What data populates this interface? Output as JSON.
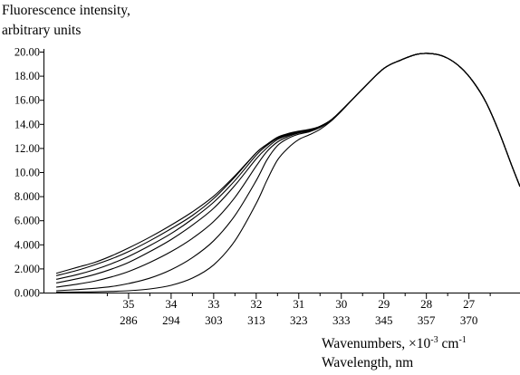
{
  "chart_data": {
    "type": "line",
    "title": "",
    "ylabel_lines": [
      "Fluorescence intensity,",
      "arbitrary units"
    ],
    "xlabel_lines": [
      {
        "text": "Wavenumbers, ×10",
        "sup": "-3",
        "after": " cm",
        "sup2": "-1"
      },
      {
        "text": "Wavelength, nm"
      }
    ],
    "ylim": [
      0,
      20
    ],
    "xlim": [
      37.0,
      25.8
    ],
    "y_ticks": [
      {
        "value": 0,
        "label": "0.000"
      },
      {
        "value": 2,
        "label": "2.000"
      },
      {
        "value": 4,
        "label": "4.000"
      },
      {
        "value": 6,
        "label": "6.000"
      },
      {
        "value": 8,
        "label": "8.000"
      },
      {
        "value": 10,
        "label": "10.00"
      },
      {
        "value": 12,
        "label": "12.00"
      },
      {
        "value": 14,
        "label": "14.00"
      },
      {
        "value": 16,
        "label": "16.00"
      },
      {
        "value": 18,
        "label": "18.00"
      },
      {
        "value": 20,
        "label": "20.00"
      }
    ],
    "x_ticks": [
      {
        "value": 35,
        "wavenumber": "35",
        "wavelength": "286"
      },
      {
        "value": 34,
        "wavenumber": "34",
        "wavelength": "294"
      },
      {
        "value": 33,
        "wavenumber": "33",
        "wavelength": "303"
      },
      {
        "value": 32,
        "wavenumber": "32",
        "wavelength": "313"
      },
      {
        "value": 31,
        "wavenumber": "31",
        "wavelength": "323"
      },
      {
        "value": 30,
        "wavenumber": "30",
        "wavelength": "333"
      },
      {
        "value": 29,
        "wavenumber": "29",
        "wavelength": "345"
      },
      {
        "value": 28,
        "wavenumber": "28",
        "wavelength": "357"
      },
      {
        "value": 27,
        "wavenumber": "27",
        "wavelength": "370"
      }
    ],
    "x_minor_ticks": [
      35.5,
      34.5,
      33.5,
      32.5,
      31.5,
      30.5,
      29.5,
      28.5,
      27.5,
      26.5
    ],
    "line_color": "#000000",
    "series": [
      {
        "x": [
          36.7,
          36.2,
          35.8,
          35.4,
          35.0,
          34.5,
          34.0,
          33.5,
          33.0,
          32.5,
          32.0,
          31.75,
          31.5,
          31.25,
          31.0,
          30.75,
          30.5,
          30.25,
          30.0,
          29.5,
          29.0,
          28.6,
          28.2,
          27.8,
          27.5,
          27.2,
          26.9,
          26.6,
          26.3,
          26.0,
          25.8
        ],
        "values": [
          1.6,
          2.1,
          2.5,
          3.05,
          3.7,
          4.6,
          5.6,
          6.7,
          8.0,
          9.7,
          11.6,
          12.3,
          12.9,
          13.2,
          13.4,
          13.55,
          13.8,
          14.3,
          15.1,
          16.9,
          18.6,
          19.3,
          19.8,
          19.8,
          19.45,
          18.7,
          17.5,
          15.8,
          13.4,
          10.6,
          8.8
        ]
      },
      {
        "x": [
          36.7,
          36.2,
          35.8,
          35.4,
          35.0,
          34.5,
          34.0,
          33.5,
          33.0,
          32.5,
          32.0,
          31.75,
          31.5,
          31.25,
          31.0,
          30.75,
          30.5,
          30.25,
          30.0,
          29.5,
          29.0,
          28.6,
          28.2,
          27.8,
          27.5,
          27.2,
          26.9,
          26.6,
          26.3,
          26.0,
          25.8
        ],
        "values": [
          1.4,
          1.85,
          2.3,
          2.8,
          3.4,
          4.3,
          5.3,
          6.4,
          7.8,
          9.6,
          11.6,
          12.3,
          12.85,
          13.15,
          13.35,
          13.5,
          13.8,
          14.3,
          15.1,
          16.9,
          18.6,
          19.3,
          19.8,
          19.8,
          19.45,
          18.7,
          17.5,
          15.8,
          13.4,
          10.6,
          8.8
        ]
      },
      {
        "x": [
          36.7,
          36.2,
          35.8,
          35.4,
          35.0,
          34.5,
          34.0,
          33.5,
          33.0,
          32.5,
          32.0,
          31.75,
          31.5,
          31.25,
          31.0,
          30.75,
          30.5,
          30.25,
          30.0,
          29.5,
          29.0,
          28.6,
          28.2,
          27.8,
          27.5,
          27.2,
          26.9,
          26.6,
          26.3,
          26.0,
          25.8
        ],
        "values": [
          1.1,
          1.5,
          1.9,
          2.4,
          3.0,
          3.9,
          4.9,
          6.1,
          7.5,
          9.3,
          11.4,
          12.2,
          12.8,
          13.1,
          13.3,
          13.5,
          13.8,
          14.3,
          15.1,
          16.9,
          18.6,
          19.3,
          19.8,
          19.8,
          19.45,
          18.7,
          17.5,
          15.8,
          13.4,
          10.6,
          8.8
        ]
      },
      {
        "x": [
          36.7,
          36.2,
          35.8,
          35.4,
          35.0,
          34.5,
          34.0,
          33.5,
          33.0,
          32.5,
          32.0,
          31.75,
          31.5,
          31.25,
          31.0,
          30.75,
          30.5,
          30.25,
          30.0,
          29.5,
          29.0,
          28.6,
          28.2,
          27.8,
          27.5,
          27.2,
          26.9,
          26.6,
          26.3,
          26.0,
          25.8
        ],
        "values": [
          0.8,
          1.15,
          1.5,
          1.95,
          2.5,
          3.4,
          4.4,
          5.6,
          7.0,
          8.9,
          11.1,
          12.0,
          12.7,
          13.05,
          13.3,
          13.45,
          13.8,
          14.3,
          15.1,
          16.9,
          18.6,
          19.3,
          19.8,
          19.8,
          19.45,
          18.7,
          17.5,
          15.8,
          13.4,
          10.6,
          8.8
        ]
      },
      {
        "x": [
          36.7,
          36.2,
          35.8,
          35.4,
          35.0,
          34.5,
          34.0,
          33.5,
          33.0,
          32.5,
          32.0,
          31.75,
          31.5,
          31.25,
          31.0,
          30.75,
          30.5,
          30.25,
          30.0,
          29.5,
          29.0,
          28.6,
          28.2,
          27.8,
          27.5,
          27.2,
          26.9,
          26.6,
          26.3,
          26.0,
          25.8
        ],
        "values": [
          0.45,
          0.7,
          0.95,
          1.3,
          1.75,
          2.5,
          3.4,
          4.5,
          5.9,
          7.9,
          10.5,
          11.7,
          12.5,
          12.95,
          13.25,
          13.4,
          13.75,
          14.3,
          15.1,
          16.9,
          18.6,
          19.3,
          19.8,
          19.8,
          19.45,
          18.7,
          17.5,
          15.8,
          13.4,
          10.6,
          8.8
        ]
      },
      {
        "x": [
          36.7,
          36.2,
          35.8,
          35.4,
          35.0,
          34.5,
          34.0,
          33.5,
          33.0,
          32.5,
          32.0,
          31.75,
          31.5,
          31.25,
          31.0,
          30.75,
          30.5,
          30.25,
          30.0,
          29.5,
          29.0,
          28.6,
          28.2,
          27.8,
          27.5,
          27.2,
          26.9,
          26.6,
          26.3,
          26.0,
          25.8
        ],
        "values": [
          0.15,
          0.25,
          0.35,
          0.5,
          0.75,
          1.2,
          1.9,
          2.9,
          4.3,
          6.4,
          9.3,
          11.0,
          12.2,
          12.8,
          13.15,
          13.35,
          13.7,
          14.25,
          15.1,
          16.9,
          18.6,
          19.3,
          19.8,
          19.8,
          19.45,
          18.7,
          17.5,
          15.8,
          13.4,
          10.6,
          8.8
        ]
      },
      {
        "x": [
          36.7,
          36.2,
          35.8,
          35.4,
          35.0,
          34.5,
          34.0,
          33.5,
          33.0,
          32.5,
          32.0,
          31.75,
          31.5,
          31.25,
          31.0,
          30.75,
          30.5,
          30.25,
          30.0,
          29.5,
          29.0,
          28.6,
          28.2,
          27.8,
          27.5,
          27.2,
          26.9,
          26.6,
          26.3,
          26.0,
          25.8
        ],
        "values": [
          0.02,
          0.04,
          0.06,
          0.1,
          0.15,
          0.3,
          0.6,
          1.2,
          2.3,
          4.3,
          7.4,
          9.3,
          11.0,
          12.0,
          12.7,
          13.1,
          13.55,
          14.2,
          15.05,
          16.9,
          18.6,
          19.3,
          19.8,
          19.8,
          19.45,
          18.7,
          17.5,
          15.8,
          13.4,
          10.6,
          8.8
        ]
      }
    ]
  }
}
